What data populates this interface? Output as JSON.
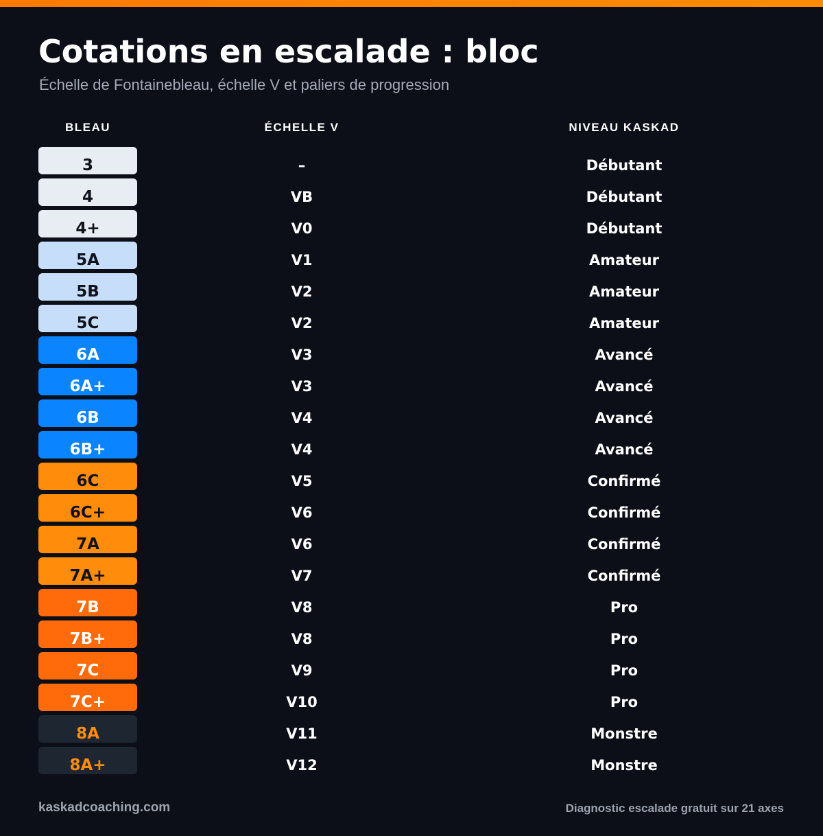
{
  "header": {
    "title": "Cotations en escalade : bloc",
    "subtitle": "Échelle de Fontainebleau, échelle V et paliers de progression"
  },
  "columns": {
    "bleau": "BLEAU",
    "v_scale": "ÉCHELLE V",
    "level": "NIVEAU KASKAD"
  },
  "colors": {
    "background": "#0c0f18",
    "accent": "#ff7a00",
    "debutant": "#e8ecf3",
    "amateur": "#c6def9",
    "avance": "#0a84ff",
    "confirme": "#ff8c0a",
    "pro": "#ff6a0a",
    "monstre": "#1e2632"
  },
  "rows": [
    {
      "bleau": "3",
      "v": "–",
      "level": "Débutant",
      "tier": "debutant"
    },
    {
      "bleau": "4",
      "v": "VB",
      "level": "Débutant",
      "tier": "debutant"
    },
    {
      "bleau": "4+",
      "v": "V0",
      "level": "Débutant",
      "tier": "debutant"
    },
    {
      "bleau": "5A",
      "v": "V1",
      "level": "Amateur",
      "tier": "amateur"
    },
    {
      "bleau": "5B",
      "v": "V2",
      "level": "Amateur",
      "tier": "amateur"
    },
    {
      "bleau": "5C",
      "v": "V2",
      "level": "Amateur",
      "tier": "amateur"
    },
    {
      "bleau": "6A",
      "v": "V3",
      "level": "Avancé",
      "tier": "avance"
    },
    {
      "bleau": "6A+",
      "v": "V3",
      "level": "Avancé",
      "tier": "avance"
    },
    {
      "bleau": "6B",
      "v": "V4",
      "level": "Avancé",
      "tier": "avance"
    },
    {
      "bleau": "6B+",
      "v": "V4",
      "level": "Avancé",
      "tier": "avance"
    },
    {
      "bleau": "6C",
      "v": "V5",
      "level": "Confirmé",
      "tier": "confirme"
    },
    {
      "bleau": "6C+",
      "v": "V6",
      "level": "Confirmé",
      "tier": "confirme"
    },
    {
      "bleau": "7A",
      "v": "V6",
      "level": "Confirmé",
      "tier": "confirme"
    },
    {
      "bleau": "7A+",
      "v": "V7",
      "level": "Confirmé",
      "tier": "confirme"
    },
    {
      "bleau": "7B",
      "v": "V8",
      "level": "Pro",
      "tier": "pro"
    },
    {
      "bleau": "7B+",
      "v": "V8",
      "level": "Pro",
      "tier": "pro"
    },
    {
      "bleau": "7C",
      "v": "V9",
      "level": "Pro",
      "tier": "pro"
    },
    {
      "bleau": "7C+",
      "v": "V10",
      "level": "Pro",
      "tier": "pro"
    },
    {
      "bleau": "8A",
      "v": "V11",
      "level": "Monstre",
      "tier": "monstre"
    },
    {
      "bleau": "8A+",
      "v": "V12",
      "level": "Monstre",
      "tier": "monstre"
    }
  ],
  "footer": {
    "site": "kaskadcoaching.com",
    "cta": "Diagnostic escalade gratuit sur 21 axes"
  }
}
